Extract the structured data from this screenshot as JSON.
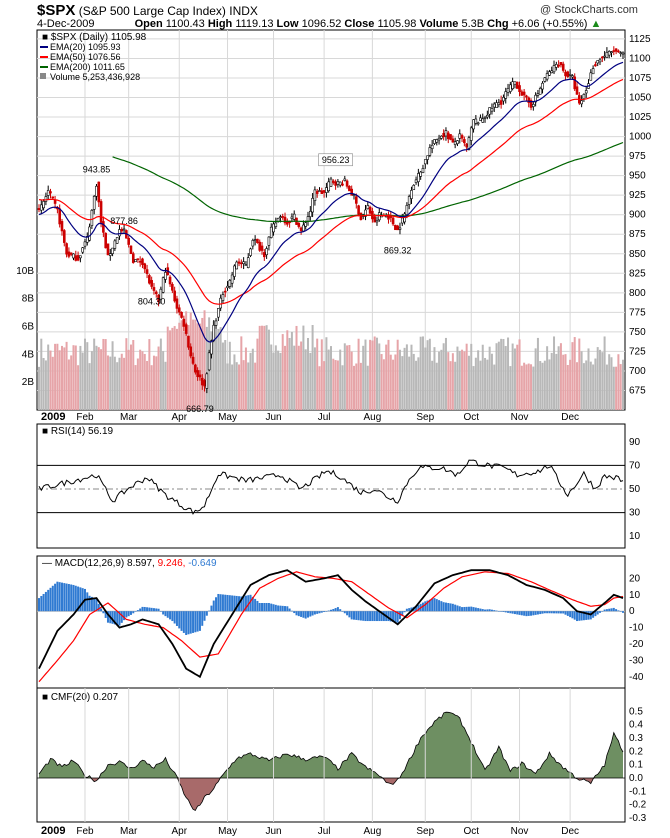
{
  "header": {
    "symbol": "$SPX",
    "name": "(S&P 500 Large Cap Index)",
    "exchange": "INDX",
    "watermark": "@ StockCharts.com",
    "date": "4-Dec-2009",
    "open_label": "Open",
    "open": "1100.43",
    "high_label": "High",
    "high": "1119.13",
    "low_label": "Low",
    "low": "1096.52",
    "close_label": "Close",
    "close": "1105.98",
    "volume_label": "Volume",
    "volume": "5.3B",
    "chg_label": "Chg",
    "chg": "+6.06 (+0.55%)"
  },
  "colors": {
    "up_price": "#000000",
    "down_price": "#cc0000",
    "ema20": "#000080",
    "ema50": "#ff0000",
    "ema200": "#006400",
    "volume_up": "#b8b8b8",
    "volume_down": "#e6a4a8",
    "macd_hist": "#2f7ad2",
    "macd_signal": "#ff0000",
    "cmf_pos": "#6e8f62",
    "cmf_neg": "#a86a6a",
    "grid": "#d8d8d8"
  },
  "chart_data": [
    {
      "type": "candlestick",
      "title": "$SPX (Daily) 1105.98",
      "legend": [
        {
          "name": "EMA(20)",
          "value": "1095.93"
        },
        {
          "name": "EMA(50)",
          "value": "1076.56"
        },
        {
          "name": "EMA(200)",
          "value": "1011.65"
        },
        {
          "name": "Volume",
          "value": "5,253,436,928"
        }
      ],
      "ylim": [
        650,
        1130
      ],
      "y_ticks": [
        "675",
        "700",
        "725",
        "750",
        "775",
        "800",
        "825",
        "850",
        "875",
        "900",
        "925",
        "950",
        "975",
        "1000",
        "1025",
        "1050",
        "1075",
        "1100",
        "1125"
      ],
      "volume_ticks": [
        "2B",
        "4B",
        "6B",
        "8B",
        "10B"
      ],
      "x_labels": [
        "2009",
        "Feb",
        "Mar",
        "Apr",
        "May",
        "Jun",
        "Jul",
        "Aug",
        "Sep",
        "Oct",
        "Nov",
        "Dec"
      ],
      "price_keypoints": [
        [
          0,
          903
        ],
        [
          4,
          930
        ],
        [
          8,
          905
        ],
        [
          12,
          850
        ],
        [
          17,
          844
        ],
        [
          21,
          870
        ],
        [
          25,
          940
        ],
        [
          27,
          890
        ],
        [
          30,
          845
        ],
        [
          35,
          880
        ],
        [
          37,
          878
        ],
        [
          41,
          842
        ],
        [
          45,
          840
        ],
        [
          49,
          805
        ],
        [
          52,
          790
        ],
        [
          55,
          830
        ],
        [
          60,
          782
        ],
        [
          63,
          760
        ],
        [
          66,
          720
        ],
        [
          68,
          700
        ],
        [
          70,
          690
        ],
        [
          72,
          680
        ],
        [
          74,
          720
        ],
        [
          76,
          757
        ],
        [
          80,
          800
        ],
        [
          83,
          815
        ],
        [
          86,
          840
        ],
        [
          90,
          835
        ],
        [
          93,
          870
        ],
        [
          98,
          850
        ],
        [
          101,
          880
        ],
        [
          105,
          900
        ],
        [
          108,
          890
        ],
        [
          111,
          898
        ],
        [
          114,
          878
        ],
        [
          118,
          905
        ],
        [
          120,
          930
        ],
        [
          124,
          928
        ],
        [
          127,
          944
        ],
        [
          130,
          940
        ],
        [
          133,
          942
        ],
        [
          137,
          922
        ],
        [
          140,
          895
        ],
        [
          143,
          910
        ],
        [
          146,
          888
        ],
        [
          148,
          900
        ],
        [
          152,
          898
        ],
        [
          156,
          880
        ],
        [
          159,
          900
        ],
        [
          162,
          935
        ],
        [
          166,
          955
        ],
        [
          170,
          985
        ],
        [
          174,
          1000
        ],
        [
          177,
          1005
        ],
        [
          180,
          990
        ],
        [
          183,
          1000
        ],
        [
          186,
          985
        ],
        [
          189,
          1020
        ],
        [
          192,
          1020
        ],
        [
          195,
          1030
        ],
        [
          198,
          1040
        ],
        [
          201,
          1045
        ],
        [
          204,
          1060
        ],
        [
          207,
          1070
        ],
        [
          211,
          1050
        ],
        [
          214,
          1040
        ],
        [
          217,
          1055
        ],
        [
          220,
          1075
        ],
        [
          223,
          1085
        ],
        [
          226,
          1095
        ],
        [
          229,
          1080
        ],
        [
          232,
          1075
        ],
        [
          235,
          1040
        ],
        [
          238,
          1060
        ],
        [
          241,
          1090
        ],
        [
          244,
          1100
        ],
        [
          247,
          1105
        ],
        [
          250,
          1110
        ],
        [
          253,
          1105
        ],
        [
          254,
          1106
        ]
      ],
      "annotations": [
        {
          "text": "943.85",
          "value": 943.85,
          "bar": 25
        },
        {
          "text": "877.86",
          "value": 877.86,
          "bar": 37
        },
        {
          "text": "804.30",
          "value": 804.3,
          "bar": 49
        },
        {
          "text": "666.79",
          "value": 666.79,
          "bar": 70
        },
        {
          "text": "956.23",
          "value": 956.23,
          "bar": 129
        },
        {
          "text": "869.32",
          "value": 869.32,
          "bar": 156
        }
      ]
    },
    {
      "type": "line",
      "title": "RSI(14) 56.19",
      "ylim": [
        0,
        100
      ],
      "y_ticks": [
        "10",
        "30",
        "50",
        "70",
        "90"
      ],
      "levels": [
        30,
        50,
        70
      ],
      "keypoints": [
        [
          0,
          50
        ],
        [
          15,
          57
        ],
        [
          25,
          62
        ],
        [
          32,
          40
        ],
        [
          40,
          52
        ],
        [
          47,
          60
        ],
        [
          55,
          45
        ],
        [
          62,
          36
        ],
        [
          68,
          30
        ],
        [
          72,
          36
        ],
        [
          78,
          63
        ],
        [
          90,
          57
        ],
        [
          105,
          62
        ],
        [
          114,
          50
        ],
        [
          125,
          65
        ],
        [
          130,
          62
        ],
        [
          140,
          47
        ],
        [
          146,
          50
        ],
        [
          152,
          43
        ],
        [
          156,
          40
        ],
        [
          160,
          55
        ],
        [
          165,
          68
        ],
        [
          175,
          68
        ],
        [
          182,
          62
        ],
        [
          187,
          74
        ],
        [
          195,
          70
        ],
        [
          202,
          68
        ],
        [
          208,
          62
        ],
        [
          217,
          65
        ],
        [
          222,
          70
        ],
        [
          226,
          57
        ],
        [
          230,
          45
        ],
        [
          237,
          63
        ],
        [
          242,
          50
        ],
        [
          246,
          61
        ],
        [
          252,
          59
        ],
        [
          254,
          56
        ]
      ]
    },
    {
      "type": "line",
      "title": "MACD(12,26,9)",
      "series_values": {
        "macd": "8.597",
        "signal": "9.246",
        "histogram": "-0.649"
      },
      "ylim": [
        -45,
        30
      ],
      "y_ticks": [
        "-40",
        "-30",
        "-20",
        "-10",
        "0",
        "10",
        "20"
      ],
      "macd_keypoints": [
        [
          0,
          -35
        ],
        [
          8,
          -12
        ],
        [
          15,
          -2
        ],
        [
          20,
          7
        ],
        [
          25,
          8
        ],
        [
          30,
          -2
        ],
        [
          35,
          -10
        ],
        [
          40,
          -8
        ],
        [
          45,
          -5
        ],
        [
          52,
          -8
        ],
        [
          58,
          -20
        ],
        [
          64,
          -35
        ],
        [
          70,
          -40
        ],
        [
          76,
          -20
        ],
        [
          84,
          -2
        ],
        [
          92,
          16
        ],
        [
          100,
          22
        ],
        [
          108,
          25
        ],
        [
          116,
          18
        ],
        [
          124,
          20
        ],
        [
          130,
          22
        ],
        [
          136,
          13
        ],
        [
          142,
          6
        ],
        [
          148,
          0
        ],
        [
          156,
          -8
        ],
        [
          164,
          3
        ],
        [
          172,
          17
        ],
        [
          180,
          22
        ],
        [
          188,
          25
        ],
        [
          196,
          25
        ],
        [
          204,
          22
        ],
        [
          212,
          16
        ],
        [
          220,
          13
        ],
        [
          228,
          8
        ],
        [
          234,
          0
        ],
        [
          240,
          -2
        ],
        [
          246,
          5
        ],
        [
          250,
          10
        ],
        [
          254,
          8
        ]
      ],
      "signal_keypoints": [
        [
          0,
          -43
        ],
        [
          8,
          -30
        ],
        [
          15,
          -18
        ],
        [
          22,
          -2
        ],
        [
          30,
          5
        ],
        [
          38,
          -5
        ],
        [
          46,
          -8
        ],
        [
          54,
          -10
        ],
        [
          62,
          -18
        ],
        [
          70,
          -28
        ],
        [
          78,
          -26
        ],
        [
          88,
          -2
        ],
        [
          96,
          14
        ],
        [
          104,
          20
        ],
        [
          112,
          24
        ],
        [
          120,
          21
        ],
        [
          128,
          20
        ],
        [
          136,
          18
        ],
        [
          144,
          10
        ],
        [
          152,
          2
        ],
        [
          160,
          -4
        ],
        [
          168,
          4
        ],
        [
          176,
          14
        ],
        [
          184,
          21
        ],
        [
          194,
          24
        ],
        [
          204,
          23
        ],
        [
          214,
          18
        ],
        [
          222,
          13
        ],
        [
          232,
          7
        ],
        [
          240,
          3
        ],
        [
          246,
          4
        ],
        [
          250,
          8
        ],
        [
          254,
          9
        ]
      ]
    },
    {
      "type": "area",
      "title": "CMF(20) 0.207",
      "ylim": [
        -0.33,
        0.6
      ],
      "y_ticks": [
        "-0.3",
        "-0.2",
        "-0.1",
        "0.0",
        "0.1",
        "0.2",
        "0.3",
        "0.4",
        "0.5"
      ],
      "keypoints": [
        [
          0,
          0.03
        ],
        [
          5,
          0.14
        ],
        [
          10,
          0.08
        ],
        [
          15,
          0.13
        ],
        [
          20,
          0.02
        ],
        [
          25,
          -0.02
        ],
        [
          30,
          0.1
        ],
        [
          35,
          0.12
        ],
        [
          40,
          0.07
        ],
        [
          45,
          0.13
        ],
        [
          50,
          0.08
        ],
        [
          55,
          0.14
        ],
        [
          60,
          0.0
        ],
        [
          64,
          -0.15
        ],
        [
          68,
          -0.25
        ],
        [
          72,
          -0.15
        ],
        [
          76,
          -0.08
        ],
        [
          80,
          0.02
        ],
        [
          86,
          0.15
        ],
        [
          92,
          0.18
        ],
        [
          100,
          0.13
        ],
        [
          108,
          0.18
        ],
        [
          116,
          0.14
        ],
        [
          124,
          0.16
        ],
        [
          130,
          0.07
        ],
        [
          136,
          0.18
        ],
        [
          142,
          0.08
        ],
        [
          148,
          0.02
        ],
        [
          152,
          -0.05
        ],
        [
          156,
          -0.02
        ],
        [
          160,
          0.1
        ],
        [
          166,
          0.3
        ],
        [
          172,
          0.42
        ],
        [
          178,
          0.5
        ],
        [
          183,
          0.44
        ],
        [
          188,
          0.27
        ],
        [
          194,
          0.05
        ],
        [
          200,
          0.23
        ],
        [
          205,
          0.05
        ],
        [
          210,
          0.11
        ],
        [
          216,
          0.03
        ],
        [
          222,
          0.18
        ],
        [
          228,
          0.08
        ],
        [
          234,
          0.0
        ],
        [
          240,
          -0.04
        ],
        [
          246,
          0.1
        ],
        [
          250,
          0.33
        ],
        [
          254,
          0.207
        ]
      ]
    }
  ]
}
